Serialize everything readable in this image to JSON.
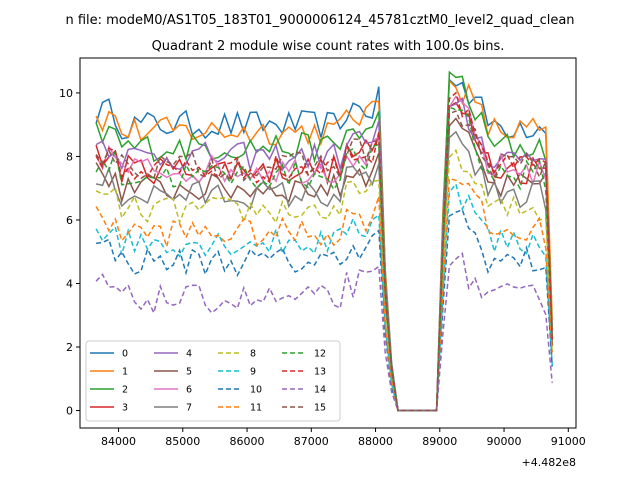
{
  "chart_data": {
    "type": "line",
    "suptitle": "n file: modeM0/AS1T05_183T01_9000006124_45781cztM0_level2_quad_clean",
    "title": "Quadrant 2 module wise count rates with 100.0s bins.",
    "xlabel": "",
    "ylabel": "",
    "x_offset_label": "+4.482e8",
    "xlim": [
      83400,
      91120
    ],
    "ylim": [
      -0.55,
      11.1
    ],
    "xticks": [
      84000,
      85000,
      86000,
      87000,
      88000,
      89000,
      90000,
      91000
    ],
    "yticks": [
      0,
      2,
      4,
      6,
      8,
      10
    ],
    "grid": false,
    "legend": {
      "position": "lower-left",
      "columns": 4
    },
    "series": [
      {
        "name": "0",
        "color": "#1f77b4",
        "dash": "solid",
        "level": 9.0,
        "p1": 10.4
      },
      {
        "name": "1",
        "color": "#ff7f0e",
        "dash": "solid",
        "level": 8.8,
        "p1": 10.3
      },
      {
        "name": "2",
        "color": "#2ca02c",
        "dash": "solid",
        "level": 8.3,
        "p1": 10.5
      },
      {
        "name": "3",
        "color": "#d62728",
        "dash": "solid",
        "level": 7.6,
        "p1": 9.6
      },
      {
        "name": "4",
        "color": "#9467bd",
        "dash": "solid",
        "level": 8.0,
        "p1": 9.5
      },
      {
        "name": "5",
        "color": "#8c564b",
        "dash": "solid",
        "level": 7.0,
        "p1": 9.0
      },
      {
        "name": "6",
        "color": "#e377c2",
        "dash": "solid",
        "level": 7.6,
        "p1": 9.7
      },
      {
        "name": "7",
        "color": "#7f7f7f",
        "dash": "solid",
        "level": 6.8,
        "p1": 8.7
      },
      {
        "name": "8",
        "color": "#bcbd22",
        "dash": "dashed",
        "level": 6.3,
        "p1": 8.0
      },
      {
        "name": "9",
        "color": "#17becf",
        "dash": "dashed",
        "level": 5.3,
        "p1": 7.0
      },
      {
        "name": "10",
        "color": "#1f77b4",
        "dash": "dashed",
        "level": 4.7,
        "p1": 6.2
      },
      {
        "name": "11",
        "color": "#ff7f0e",
        "dash": "dashed",
        "level": 5.6,
        "p1": 7.4
      },
      {
        "name": "12",
        "color": "#2ca02c",
        "dash": "dashed",
        "level": 7.4,
        "p1": 9.6
      },
      {
        "name": "13",
        "color": "#d62728",
        "dash": "dashed",
        "level": 7.6,
        "p1": 10.0
      },
      {
        "name": "14",
        "color": "#9467bd",
        "dash": "dashed",
        "level": 3.5,
        "p1": 4.6
      },
      {
        "name": "15",
        "color": "#8c564b",
        "dash": "dashed",
        "level": 7.7,
        "p1": 9.3
      }
    ]
  }
}
